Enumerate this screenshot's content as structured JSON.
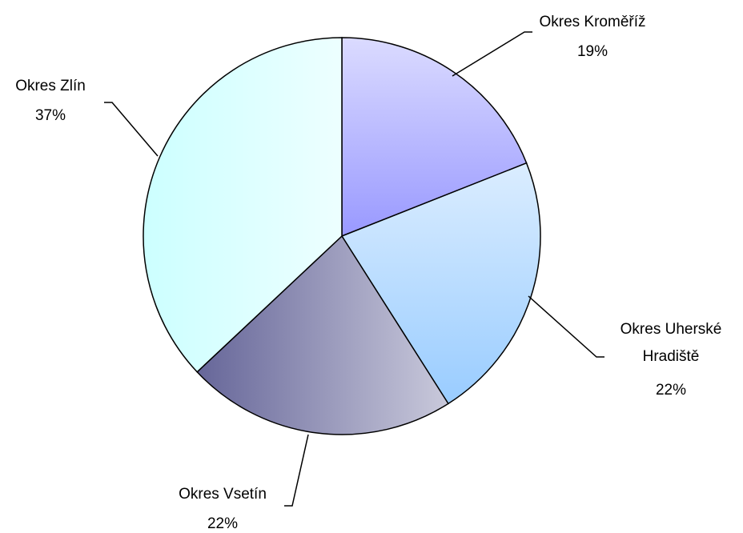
{
  "chart_data": {
    "type": "pie",
    "categories": [
      "Okres Kroměříž",
      "Okres Uherské Hradiště",
      "Okres Vsetín",
      "Okres Zlín"
    ],
    "values": [
      19,
      22,
      22,
      37
    ],
    "value_labels": [
      "19%",
      "22%",
      "22%",
      "37%"
    ],
    "colors": [
      "#9999ff",
      "#99ccff",
      "#666699",
      "#ccffff"
    ]
  }
}
